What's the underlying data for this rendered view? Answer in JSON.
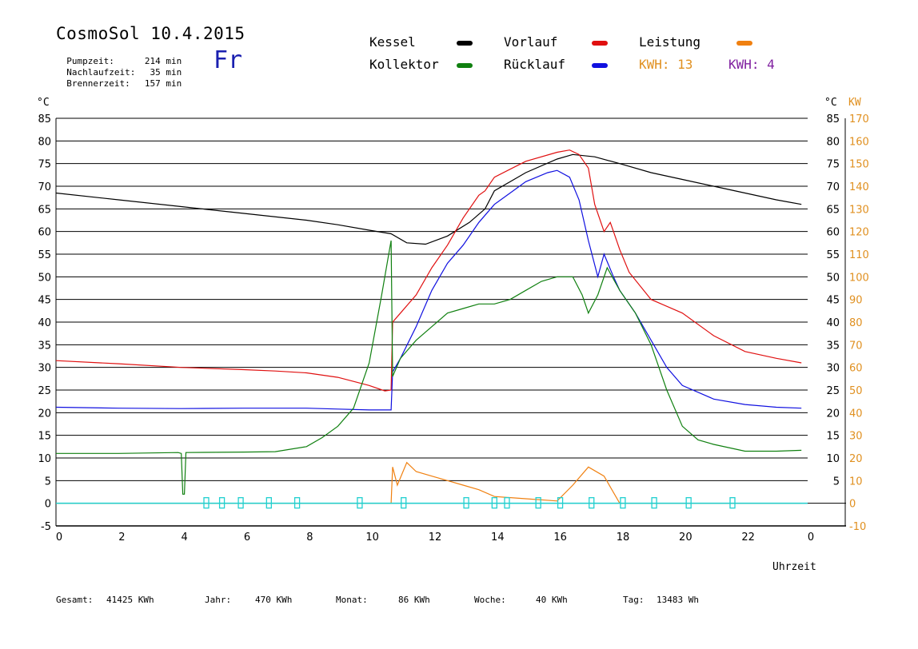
{
  "header": {
    "title": "CosmoSol 10.4.2015",
    "weekday": "Fr",
    "info": [
      {
        "label": "Pumpzeit:",
        "value": "214 min"
      },
      {
        "label": "Nachlaufzeit:",
        "value": "35 min"
      },
      {
        "label": "Brennerzeit:",
        "value": "157 min"
      }
    ]
  },
  "legend": {
    "items": [
      {
        "label": "Kessel",
        "color": "#000000"
      },
      {
        "label": "Vorlauf",
        "color": "#e01010"
      },
      {
        "label": "Leistung",
        "color": "#f08010"
      },
      {
        "label": "Kollektor",
        "color": "#108010"
      },
      {
        "label": "Rücklauf",
        "color": "#1010e0"
      }
    ],
    "kwh_orange": "KWH: 13",
    "kwh_purple": "KWH: 4",
    "kwh_orange_color": "#e09020",
    "kwh_purple_color": "#8020a0"
  },
  "axes": {
    "left_unit": "°C",
    "right_unit_c": "°C",
    "right_unit_kw": "KW",
    "xlabel": "Uhrzeit"
  },
  "footer": {
    "gesamt_label": "Gesamt:",
    "gesamt_value": "41425 KWh",
    "jahr_label": "Jahr:",
    "jahr_value": "470 KWh",
    "monat_label": "Monat:",
    "monat_value": "86 KWh",
    "woche_label": "Woche:",
    "woche_value": "40 KWh",
    "tag_label": "Tag:",
    "tag_value": "13483 Wh"
  },
  "chart_data": {
    "type": "line",
    "x_ticks": [
      "0",
      "2",
      "4",
      "6",
      "8",
      "10",
      "12",
      "14",
      "16",
      "18",
      "20",
      "22",
      "0"
    ],
    "y_ticks_left": [
      "85",
      "80",
      "75",
      "70",
      "65",
      "60",
      "55",
      "50",
      "45",
      "40",
      "35",
      "30",
      "25",
      "20",
      "15",
      "10",
      "5",
      "0",
      "-5"
    ],
    "y_ticks_right_c": [
      "85",
      "80",
      "75",
      "70",
      "65",
      "60",
      "55",
      "50",
      "45",
      "40",
      "35",
      "30",
      "25",
      "20",
      "15",
      "10",
      "5"
    ],
    "y_ticks_right_kw": [
      "170",
      "160",
      "150",
      "140",
      "130",
      "120",
      "110",
      "100",
      "90",
      "80",
      "70",
      "60",
      "50",
      "40",
      "30",
      "20",
      "10",
      "0",
      "-10"
    ],
    "xlim": [
      0,
      24
    ],
    "ylim": [
      -5,
      85
    ],
    "y2lim": [
      -10,
      170
    ],
    "grid": true,
    "series": [
      {
        "name": "Kessel",
        "color": "#000000",
        "points": [
          [
            0,
            68.5
          ],
          [
            2,
            67
          ],
          [
            4,
            65.5
          ],
          [
            6,
            64
          ],
          [
            8,
            62.5
          ],
          [
            9,
            61.5
          ],
          [
            10,
            60.3
          ],
          [
            10.7,
            59.5
          ],
          [
            11.2,
            57.5
          ],
          [
            11.8,
            57.2
          ],
          [
            12.5,
            59
          ],
          [
            13.2,
            62
          ],
          [
            13.7,
            65
          ],
          [
            14,
            69
          ],
          [
            15,
            73
          ],
          [
            16,
            76
          ],
          [
            16.5,
            77
          ],
          [
            17.2,
            76.5
          ],
          [
            18,
            75
          ],
          [
            19,
            73
          ],
          [
            20,
            71.5
          ],
          [
            21,
            70
          ],
          [
            22,
            68.5
          ],
          [
            23,
            67
          ],
          [
            23.8,
            66
          ]
        ]
      },
      {
        "name": "Vorlauf",
        "color": "#e01010",
        "points": [
          [
            0,
            31.5
          ],
          [
            2,
            30.8
          ],
          [
            4,
            30
          ],
          [
            6,
            29.5
          ],
          [
            7,
            29.2
          ],
          [
            8,
            28.8
          ],
          [
            9,
            27.8
          ],
          [
            10,
            26
          ],
          [
            10.5,
            24.8
          ],
          [
            10.7,
            25
          ],
          [
            10.75,
            40
          ],
          [
            11,
            42
          ],
          [
            11.5,
            46
          ],
          [
            12,
            52
          ],
          [
            12.5,
            57
          ],
          [
            13,
            63
          ],
          [
            13.5,
            68
          ],
          [
            13.7,
            69
          ],
          [
            14,
            72
          ],
          [
            15,
            75.5
          ],
          [
            16,
            77.5
          ],
          [
            16.4,
            78
          ],
          [
            16.7,
            77
          ],
          [
            17,
            74
          ],
          [
            17.2,
            66
          ],
          [
            17.5,
            60
          ],
          [
            17.7,
            62
          ],
          [
            17.8,
            60
          ],
          [
            18,
            56
          ],
          [
            18.3,
            51
          ],
          [
            19,
            45
          ],
          [
            20,
            42
          ],
          [
            21,
            37
          ],
          [
            22,
            33.5
          ],
          [
            23,
            32
          ],
          [
            23.8,
            31
          ]
        ]
      },
      {
        "name": "Rücklauf",
        "color": "#1010e0",
        "points": [
          [
            0,
            21.2
          ],
          [
            2,
            21
          ],
          [
            4,
            20.9
          ],
          [
            6,
            21
          ],
          [
            8,
            21
          ],
          [
            9,
            20.8
          ],
          [
            10,
            20.6
          ],
          [
            10.7,
            20.6
          ],
          [
            10.75,
            29
          ],
          [
            11,
            32
          ],
          [
            11.5,
            39
          ],
          [
            12,
            47
          ],
          [
            12.5,
            53
          ],
          [
            13,
            57
          ],
          [
            13.5,
            62
          ],
          [
            14,
            66
          ],
          [
            15,
            71
          ],
          [
            15.7,
            73
          ],
          [
            16,
            73.5
          ],
          [
            16.4,
            72
          ],
          [
            16.7,
            67
          ],
          [
            17,
            58
          ],
          [
            17.3,
            50
          ],
          [
            17.5,
            55
          ],
          [
            17.8,
            50
          ],
          [
            18,
            47
          ],
          [
            18.5,
            42
          ],
          [
            19,
            36
          ],
          [
            19.5,
            30
          ],
          [
            20,
            26
          ],
          [
            21,
            23
          ],
          [
            22,
            21.8
          ],
          [
            23,
            21.2
          ],
          [
            23.8,
            21
          ]
        ]
      },
      {
        "name": "Kollektor",
        "color": "#108010",
        "points": [
          [
            0,
            11
          ],
          [
            2,
            11
          ],
          [
            3.9,
            11.2
          ],
          [
            4,
            11
          ],
          [
            4.05,
            2
          ],
          [
            4.1,
            2
          ],
          [
            4.15,
            11.2
          ],
          [
            6,
            11.3
          ],
          [
            7,
            11.4
          ],
          [
            8,
            12.5
          ],
          [
            8.5,
            14.5
          ],
          [
            9,
            17
          ],
          [
            9.5,
            21
          ],
          [
            10,
            31
          ],
          [
            10.4,
            46
          ],
          [
            10.65,
            56
          ],
          [
            10.7,
            58
          ],
          [
            10.75,
            28
          ],
          [
            11,
            32
          ],
          [
            11.5,
            36
          ],
          [
            12,
            39
          ],
          [
            12.5,
            42
          ],
          [
            13,
            43
          ],
          [
            13.5,
            44
          ],
          [
            14,
            44
          ],
          [
            14.5,
            45
          ],
          [
            15,
            47
          ],
          [
            15.5,
            49
          ],
          [
            16,
            50
          ],
          [
            16.5,
            50
          ],
          [
            16.8,
            46
          ],
          [
            17,
            42
          ],
          [
            17.3,
            46
          ],
          [
            17.6,
            52
          ],
          [
            18,
            47
          ],
          [
            18.5,
            42
          ],
          [
            19,
            35
          ],
          [
            19.5,
            25
          ],
          [
            20,
            17
          ],
          [
            20.5,
            14
          ],
          [
            21,
            13
          ],
          [
            22,
            11.5
          ],
          [
            23,
            11.5
          ],
          [
            23.8,
            11.7
          ]
        ]
      }
    ],
    "power_series": [
      {
        "name": "Leistung",
        "color": "#f08010",
        "points": [
          [
            0,
            0
          ],
          [
            10.7,
            0
          ],
          [
            10.75,
            16
          ],
          [
            10.9,
            8
          ],
          [
            11.2,
            18
          ],
          [
            11.5,
            14
          ],
          [
            12,
            12
          ],
          [
            12.5,
            10
          ],
          [
            13,
            8
          ],
          [
            13.5,
            6
          ],
          [
            14,
            3
          ],
          [
            15,
            2
          ],
          [
            16,
            1
          ],
          [
            16.5,
            8
          ],
          [
            17,
            16
          ],
          [
            17.5,
            12
          ],
          [
            18,
            0
          ],
          [
            23.8,
            0
          ]
        ]
      }
    ],
    "pump_marker_color": "#20d0d0",
    "pump_markers_x": [
      4.8,
      5.3,
      5.9,
      6.8,
      7.7,
      9.7,
      11.1,
      13.1,
      14.0,
      14.4,
      15.4,
      16.1,
      17.1,
      18.1,
      19.1,
      20.2,
      21.6
    ]
  }
}
